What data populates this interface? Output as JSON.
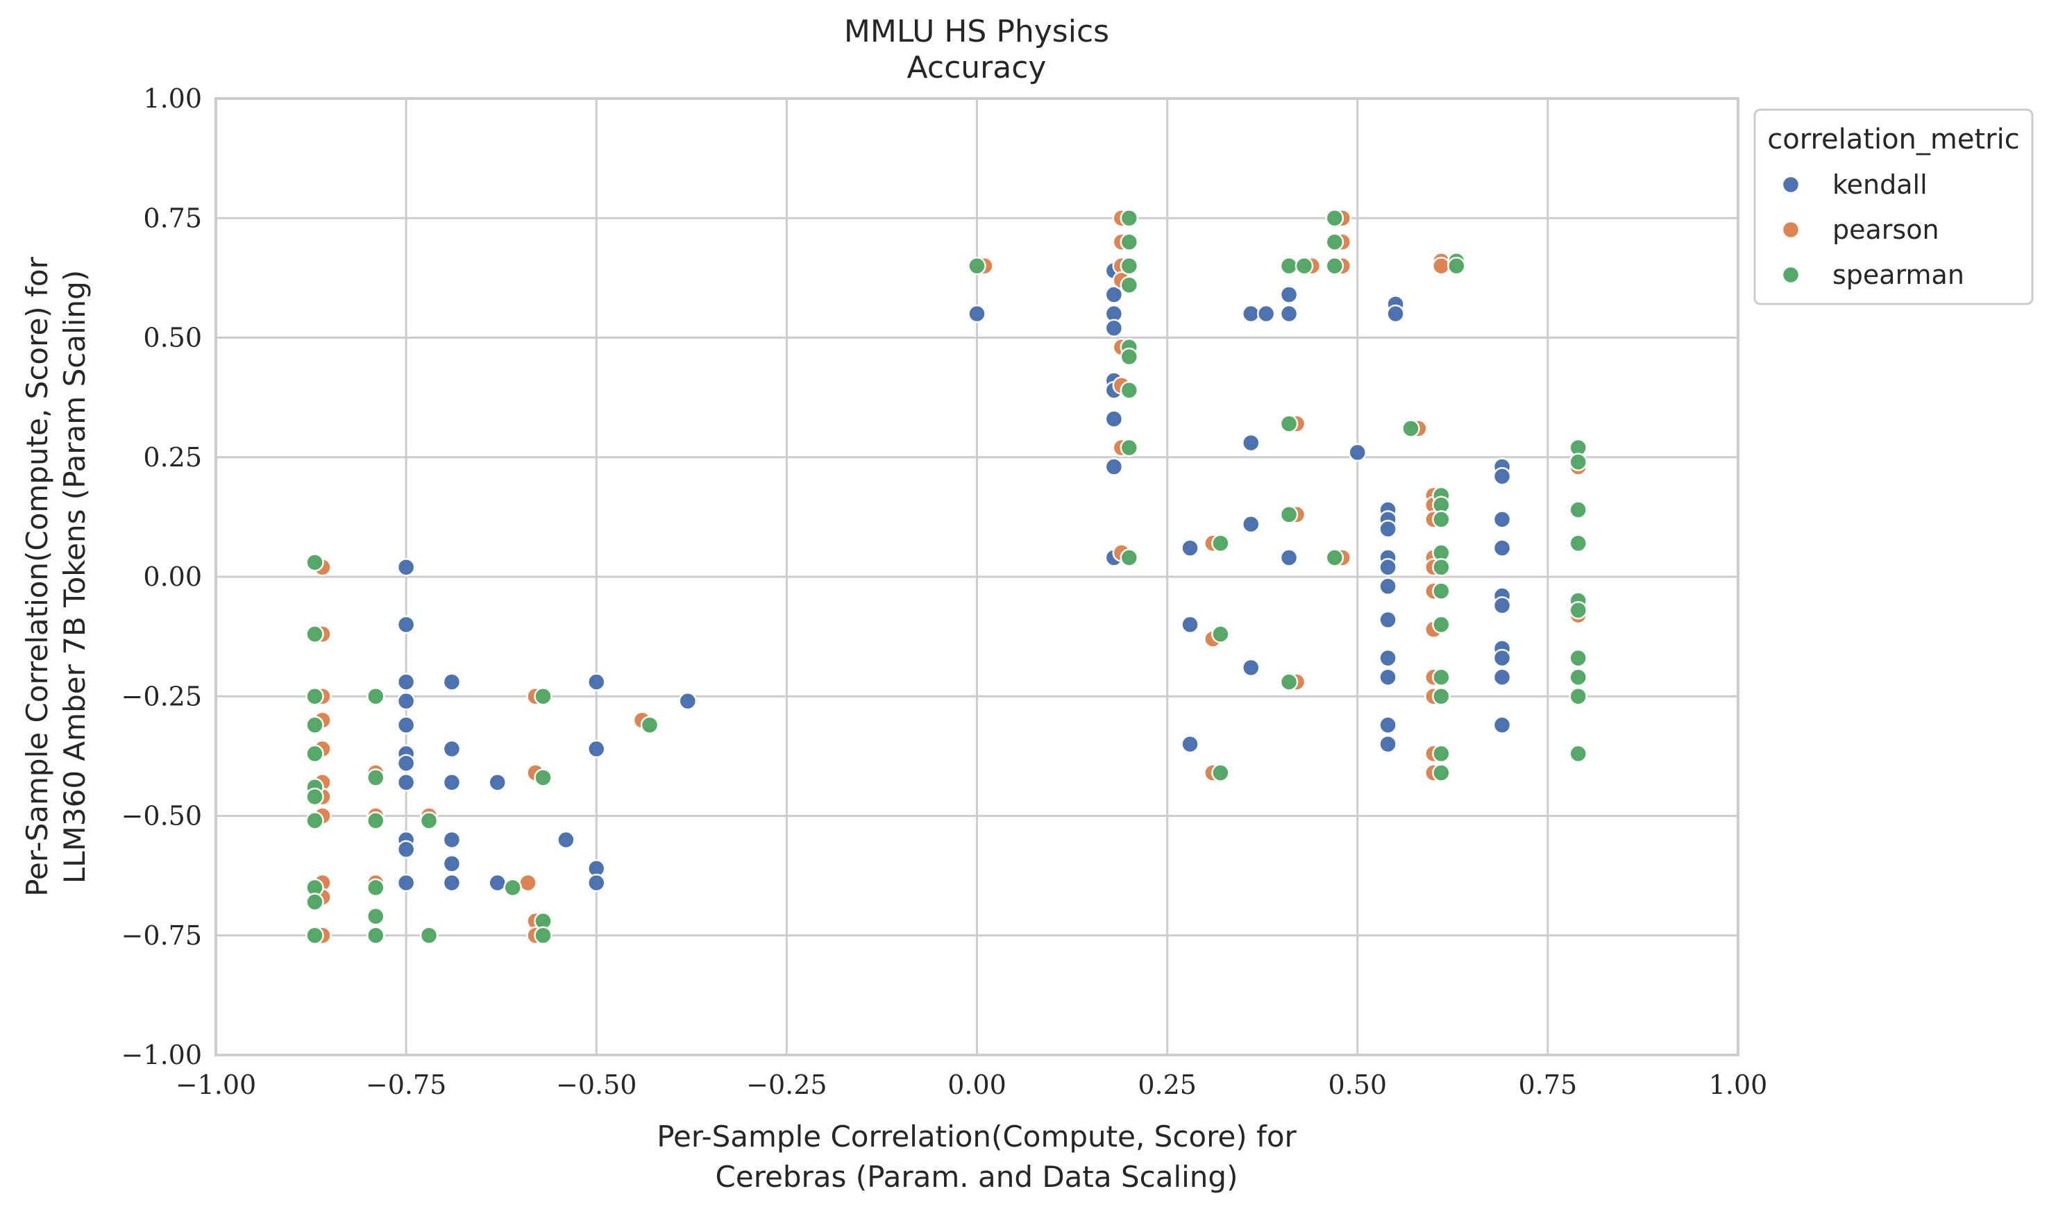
{
  "chart_data": {
    "type": "scatter",
    "title": "MMLU HS Physics",
    "subtitle": "Accuracy",
    "xlabel_lines": [
      "Per-Sample Correlation(Compute, Score) for",
      "Cerebras (Param. and Data Scaling)"
    ],
    "ylabel_lines": [
      "Per-Sample Correlation(Compute, Score) for",
      "LLM360 Amber 7B Tokens (Param Scaling)"
    ],
    "xlim": [
      -1.0,
      1.0
    ],
    "ylim": [
      -1.0,
      1.0
    ],
    "ticks": [
      -1.0,
      -0.75,
      -0.5,
      -0.25,
      0.0,
      0.25,
      0.5,
      0.75,
      1.0
    ],
    "tick_labels": [
      "−1.00",
      "−0.75",
      "−0.50",
      "−0.25",
      "0.00",
      "0.25",
      "0.50",
      "0.75",
      "1.00"
    ],
    "grid": true,
    "legend": {
      "title": "correlation_metric",
      "placement": "outside-top-right"
    },
    "series": [
      {
        "name": "kendall",
        "color": "#4c72b0",
        "points": [
          [
            -0.75,
            0.02
          ],
          [
            -0.75,
            -0.1
          ],
          [
            -0.75,
            -0.22
          ],
          [
            -0.75,
            -0.26
          ],
          [
            -0.75,
            -0.31
          ],
          [
            -0.75,
            -0.37
          ],
          [
            -0.75,
            -0.39
          ],
          [
            -0.75,
            -0.43
          ],
          [
            -0.75,
            -0.55
          ],
          [
            -0.75,
            -0.57
          ],
          [
            -0.75,
            -0.64
          ],
          [
            -0.69,
            -0.22
          ],
          [
            -0.69,
            -0.36
          ],
          [
            -0.69,
            -0.43
          ],
          [
            -0.69,
            -0.55
          ],
          [
            -0.69,
            -0.6
          ],
          [
            -0.69,
            -0.64
          ],
          [
            -0.63,
            -0.43
          ],
          [
            -0.63,
            -0.64
          ],
          [
            -0.54,
            -0.55
          ],
          [
            -0.5,
            -0.22
          ],
          [
            -0.5,
            -0.36
          ],
          [
            -0.5,
            -0.61
          ],
          [
            -0.5,
            -0.64
          ],
          [
            -0.38,
            -0.26
          ],
          [
            0.0,
            0.55
          ],
          [
            0.18,
            0.64
          ],
          [
            0.18,
            0.59
          ],
          [
            0.18,
            0.55
          ],
          [
            0.18,
            0.52
          ],
          [
            0.18,
            0.41
          ],
          [
            0.18,
            0.39
          ],
          [
            0.18,
            0.33
          ],
          [
            0.18,
            0.23
          ],
          [
            0.18,
            0.04
          ],
          [
            0.28,
            0.06
          ],
          [
            0.28,
            -0.1
          ],
          [
            0.28,
            -0.35
          ],
          [
            0.36,
            0.55
          ],
          [
            0.36,
            0.28
          ],
          [
            0.36,
            0.11
          ],
          [
            0.36,
            -0.19
          ],
          [
            0.38,
            0.55
          ],
          [
            0.41,
            0.59
          ],
          [
            0.41,
            0.55
          ],
          [
            0.41,
            0.04
          ],
          [
            0.5,
            0.26
          ],
          [
            0.55,
            0.57
          ],
          [
            0.55,
            0.55
          ],
          [
            0.54,
            0.14
          ],
          [
            0.54,
            0.12
          ],
          [
            0.54,
            0.1
          ],
          [
            0.54,
            0.04
          ],
          [
            0.54,
            0.02
          ],
          [
            0.54,
            -0.02
          ],
          [
            0.54,
            -0.09
          ],
          [
            0.54,
            -0.17
          ],
          [
            0.54,
            -0.21
          ],
          [
            0.54,
            -0.31
          ],
          [
            0.54,
            -0.35
          ],
          [
            0.69,
            0.23
          ],
          [
            0.69,
            0.21
          ],
          [
            0.69,
            0.12
          ],
          [
            0.69,
            0.06
          ],
          [
            0.69,
            -0.04
          ],
          [
            0.69,
            -0.06
          ],
          [
            0.69,
            -0.15
          ],
          [
            0.69,
            -0.17
          ],
          [
            0.69,
            -0.21
          ],
          [
            0.69,
            -0.31
          ]
        ]
      },
      {
        "name": "pearson",
        "color": "#dd8452",
        "points": [
          [
            -0.86,
            0.02
          ],
          [
            -0.86,
            -0.12
          ],
          [
            -0.86,
            -0.25
          ],
          [
            -0.86,
            -0.3
          ],
          [
            -0.86,
            -0.36
          ],
          [
            -0.86,
            -0.43
          ],
          [
            -0.86,
            -0.46
          ],
          [
            -0.86,
            -0.5
          ],
          [
            -0.86,
            -0.64
          ],
          [
            -0.86,
            -0.67
          ],
          [
            -0.86,
            -0.75
          ],
          [
            -0.79,
            -0.25
          ],
          [
            -0.79,
            -0.41
          ],
          [
            -0.79,
            -0.5
          ],
          [
            -0.79,
            -0.64
          ],
          [
            -0.79,
            -0.75
          ],
          [
            -0.72,
            -0.5
          ],
          [
            -0.72,
            -0.75
          ],
          [
            -0.59,
            -0.64
          ],
          [
            -0.58,
            -0.25
          ],
          [
            -0.58,
            -0.41
          ],
          [
            -0.58,
            -0.72
          ],
          [
            -0.58,
            -0.75
          ],
          [
            -0.44,
            -0.3
          ],
          [
            0.01,
            0.65
          ],
          [
            0.19,
            0.75
          ],
          [
            0.19,
            0.7
          ],
          [
            0.19,
            0.65
          ],
          [
            0.19,
            0.62
          ],
          [
            0.19,
            0.48
          ],
          [
            0.19,
            0.4
          ],
          [
            0.19,
            0.27
          ],
          [
            0.19,
            0.05
          ],
          [
            0.31,
            0.07
          ],
          [
            0.31,
            -0.13
          ],
          [
            0.31,
            -0.41
          ],
          [
            0.42,
            0.32
          ],
          [
            0.42,
            0.13
          ],
          [
            0.42,
            -0.22
          ],
          [
            0.43,
            0.65
          ],
          [
            0.44,
            0.65
          ],
          [
            0.48,
            0.75
          ],
          [
            0.48,
            0.7
          ],
          [
            0.48,
            0.65
          ],
          [
            0.48,
            0.04
          ],
          [
            0.58,
            0.31
          ],
          [
            0.61,
            0.66
          ],
          [
            0.61,
            0.65
          ],
          [
            0.6,
            0.17
          ],
          [
            0.6,
            0.15
          ],
          [
            0.6,
            0.12
          ],
          [
            0.6,
            0.04
          ],
          [
            0.6,
            0.02
          ],
          [
            0.6,
            -0.03
          ],
          [
            0.6,
            -0.11
          ],
          [
            0.6,
            -0.21
          ],
          [
            0.6,
            -0.25
          ],
          [
            0.6,
            -0.37
          ],
          [
            0.6,
            -0.41
          ],
          [
            0.79,
            0.27
          ],
          [
            0.79,
            0.23
          ],
          [
            0.79,
            0.14
          ],
          [
            0.79,
            0.07
          ],
          [
            0.79,
            -0.05
          ],
          [
            0.79,
            -0.08
          ],
          [
            0.79,
            -0.17
          ],
          [
            0.79,
            -0.21
          ],
          [
            0.79,
            -0.25
          ],
          [
            0.79,
            -0.37
          ]
        ]
      },
      {
        "name": "spearman",
        "color": "#55a868",
        "points": [
          [
            -0.87,
            0.03
          ],
          [
            -0.87,
            -0.12
          ],
          [
            -0.87,
            -0.25
          ],
          [
            -0.87,
            -0.31
          ],
          [
            -0.87,
            -0.37
          ],
          [
            -0.87,
            -0.44
          ],
          [
            -0.87,
            -0.46
          ],
          [
            -0.87,
            -0.51
          ],
          [
            -0.87,
            -0.65
          ],
          [
            -0.87,
            -0.68
          ],
          [
            -0.87,
            -0.75
          ],
          [
            -0.79,
            -0.25
          ],
          [
            -0.79,
            -0.42
          ],
          [
            -0.79,
            -0.51
          ],
          [
            -0.79,
            -0.65
          ],
          [
            -0.79,
            -0.71
          ],
          [
            -0.79,
            -0.75
          ],
          [
            -0.72,
            -0.51
          ],
          [
            -0.72,
            -0.75
          ],
          [
            -0.61,
            -0.65
          ],
          [
            -0.57,
            -0.25
          ],
          [
            -0.57,
            -0.42
          ],
          [
            -0.57,
            -0.72
          ],
          [
            -0.57,
            -0.75
          ],
          [
            -0.43,
            -0.31
          ],
          [
            0.0,
            0.65
          ],
          [
            0.2,
            0.75
          ],
          [
            0.2,
            0.7
          ],
          [
            0.2,
            0.65
          ],
          [
            0.2,
            0.61
          ],
          [
            0.2,
            0.48
          ],
          [
            0.2,
            0.46
          ],
          [
            0.2,
            0.39
          ],
          [
            0.2,
            0.27
          ],
          [
            0.2,
            0.04
          ],
          [
            0.32,
            0.07
          ],
          [
            0.32,
            -0.12
          ],
          [
            0.32,
            -0.41
          ],
          [
            0.41,
            0.65
          ],
          [
            0.41,
            0.32
          ],
          [
            0.41,
            0.13
          ],
          [
            0.41,
            -0.22
          ],
          [
            0.43,
            0.65
          ],
          [
            0.47,
            0.75
          ],
          [
            0.47,
            0.7
          ],
          [
            0.47,
            0.65
          ],
          [
            0.47,
            0.04
          ],
          [
            0.57,
            0.31
          ],
          [
            0.63,
            0.66
          ],
          [
            0.63,
            0.65
          ],
          [
            0.61,
            0.17
          ],
          [
            0.61,
            0.15
          ],
          [
            0.61,
            0.12
          ],
          [
            0.61,
            0.05
          ],
          [
            0.61,
            0.02
          ],
          [
            0.61,
            -0.03
          ],
          [
            0.61,
            -0.1
          ],
          [
            0.61,
            -0.21
          ],
          [
            0.61,
            -0.25
          ],
          [
            0.61,
            -0.37
          ],
          [
            0.61,
            -0.41
          ],
          [
            0.79,
            0.27
          ],
          [
            0.79,
            0.24
          ],
          [
            0.79,
            0.14
          ],
          [
            0.79,
            0.07
          ],
          [
            0.79,
            -0.05
          ],
          [
            0.79,
            -0.07
          ],
          [
            0.79,
            -0.17
          ],
          [
            0.79,
            -0.21
          ],
          [
            0.79,
            -0.25
          ],
          [
            0.79,
            -0.37
          ]
        ]
      }
    ]
  }
}
